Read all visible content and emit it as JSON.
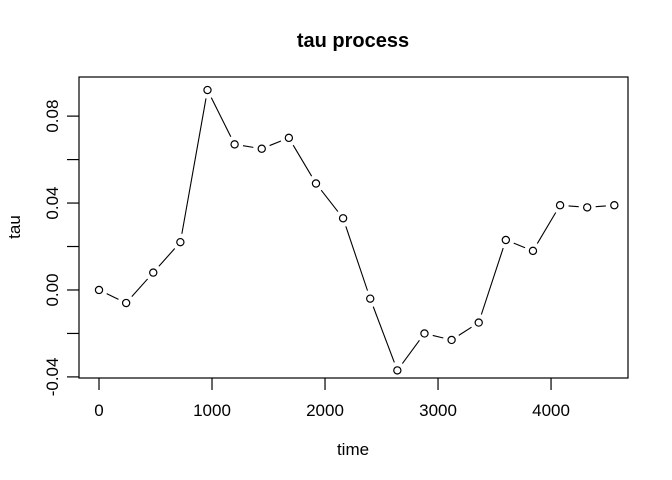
{
  "chart_data": {
    "type": "line",
    "title": "tau process",
    "xlabel": "time",
    "ylabel": "tau",
    "marker": "open-circle",
    "line_style": "solid-with-gaps",
    "grid": false,
    "box": true,
    "colors": {
      "foreground": "#000000",
      "background": "#ffffff"
    },
    "xlim": [
      -177,
      4681
    ],
    "ylim": [
      -0.0405,
      0.098
    ],
    "xticks": {
      "values": [
        0,
        1000,
        2000,
        3000,
        4000
      ],
      "labels": [
        "0",
        "1000",
        "2000",
        "3000",
        "4000"
      ]
    },
    "yticks": {
      "values": [
        -0.04,
        -0.02,
        0.0,
        0.02,
        0.04,
        0.06,
        0.08
      ],
      "labels": [
        "-0.04",
        "",
        "0.00",
        "",
        "0.04",
        "",
        "0.08"
      ]
    },
    "series": [
      {
        "name": "tau",
        "x": [
          0,
          240,
          480,
          720,
          960,
          1200,
          1440,
          1680,
          1920,
          2160,
          2400,
          2640,
          2880,
          3120,
          3360,
          3600,
          3840,
          4080,
          4320,
          4560
        ],
        "y": [
          0.0,
          -0.006,
          0.008,
          0.022,
          0.092,
          0.067,
          0.065,
          0.07,
          0.049,
          0.033,
          -0.004,
          -0.037,
          -0.02,
          -0.023,
          -0.015,
          0.023,
          0.018,
          0.039,
          0.038,
          0.039
        ]
      }
    ]
  }
}
